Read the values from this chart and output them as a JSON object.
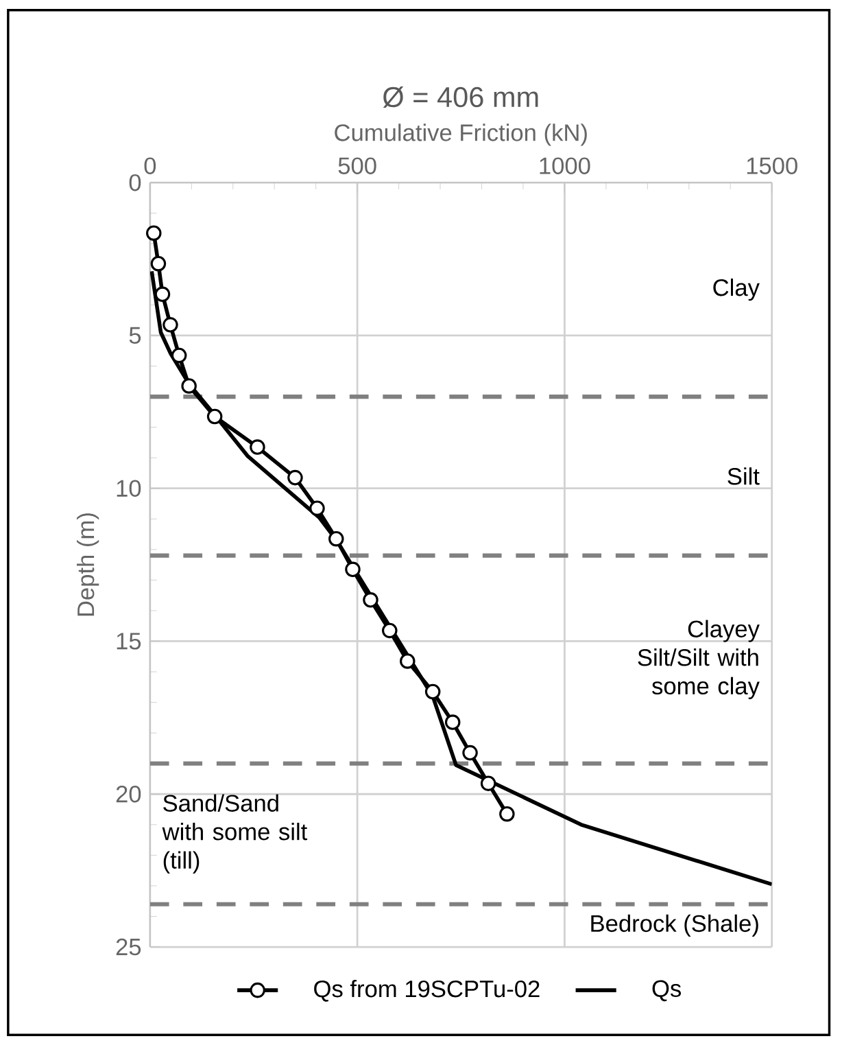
{
  "chart_data": {
    "type": "line",
    "title": "Ø = 406 mm",
    "xlabel": "Cumulative Friction (kN)",
    "ylabel": "Depth (m)",
    "xlim": [
      0,
      1500
    ],
    "xticks": [
      0,
      500,
      1000,
      1500
    ],
    "ylim": [
      25,
      0
    ],
    "yticks": [
      0,
      5,
      10,
      15,
      20,
      25
    ],
    "grid": true,
    "legend": "bottom",
    "series": [
      {
        "name": "Qs from 19SCPTu-02",
        "color": "#000000",
        "marker": "circle",
        "x": [
          9,
          20,
          30,
          49,
          70,
          94,
          156,
          259,
          350,
          403,
          449,
          489,
          532,
          578,
          621,
          682,
          730,
          772,
          816,
          861
        ],
        "values": [
          1.65,
          2.65,
          3.65,
          4.65,
          5.65,
          6.65,
          7.65,
          8.65,
          9.65,
          10.65,
          11.65,
          12.65,
          13.65,
          14.65,
          15.65,
          16.65,
          17.65,
          18.65,
          19.65,
          20.65
        ]
      },
      {
        "name": "Qs",
        "color": "#000000",
        "marker": "none",
        "x": [
          4,
          26,
          50,
          95,
          156,
          236,
          408,
          450,
          682,
          738,
          1040,
          1500
        ],
        "values": [
          2.9,
          4.9,
          5.6,
          6.6,
          7.6,
          8.95,
          10.95,
          11.7,
          16.8,
          19.05,
          21,
          22.95
        ]
      }
    ],
    "ref_lines": [
      {
        "axis": "y",
        "value": 7,
        "color": "#808080",
        "line_style": "dashed"
      },
      {
        "axis": "y",
        "value": 12.2,
        "color": "#808080",
        "line_style": "dashed"
      },
      {
        "axis": "y",
        "value": 19,
        "color": "#808080",
        "line_style": "dashed"
      },
      {
        "axis": "y",
        "value": 23.6,
        "color": "#808080",
        "line_style": "dashed"
      }
    ],
    "annotations": [
      "Clay",
      "Silt",
      "Clayey Silt/Silt with some clay",
      "Sand/Sand with some silt (till)",
      "Bedrock (Shale)"
    ]
  }
}
